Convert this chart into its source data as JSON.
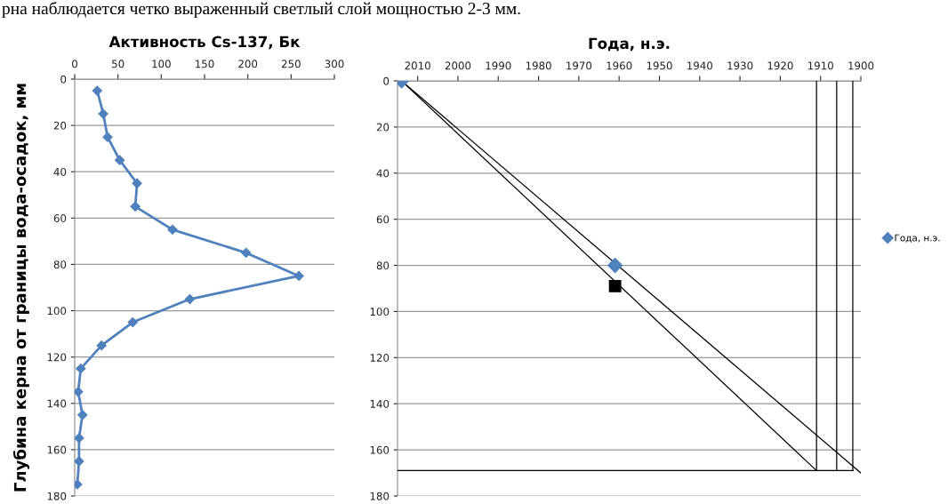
{
  "chart_data": [
    {
      "type": "line",
      "title": "Активность Cs-137, Бк",
      "ylabel": "Глубина керна от границы вода-осадок, мм",
      "annotations": [
        "рна наблюдается четко выраженный светлый слой мощностью 2-3 мм."
      ],
      "xlim": [
        0,
        300
      ],
      "xticks": [
        0,
        50,
        100,
        150,
        200,
        250,
        300
      ],
      "ylim": [
        180,
        0
      ],
      "yticks": [
        0,
        20,
        40,
        60,
        80,
        100,
        120,
        140,
        160,
        180
      ],
      "grid": "y",
      "marker": "diamond",
      "series": [
        {
          "color": "#4f81bd",
          "x": [
            26,
            33,
            38,
            52,
            72,
            70,
            113,
            198,
            259,
            133,
            67,
            31,
            7,
            4,
            9,
            5,
            5,
            3
          ],
          "values": [
            5,
            15,
            25,
            35,
            45,
            55,
            65,
            75,
            85,
            95,
            105,
            115,
            125,
            135,
            145,
            155,
            165,
            175
          ]
        }
      ]
    },
    {
      "type": "scatter",
      "title": "Года, н.э.",
      "xlim": [
        2015,
        1900
      ],
      "xticks": [
        2010,
        2000,
        1990,
        1980,
        1970,
        1960,
        1950,
        1940,
        1930,
        1920,
        1910,
        1900
      ],
      "ylim": [
        180,
        0
      ],
      "yticks": [
        0,
        20,
        40,
        60,
        80,
        100,
        120,
        140,
        160,
        180
      ],
      "grid": "y",
      "legend": "right",
      "series": [
        {
          "type": "line",
          "color": "#000000",
          "marker": "none",
          "x": [
            2014,
            1900
          ],
          "values": [
            0,
            170
          ]
        },
        {
          "type": "line",
          "color": "#000000",
          "marker": "none",
          "x": [
            2014,
            1911
          ],
          "values": [
            0,
            169
          ]
        },
        {
          "type": "line",
          "color": "#000000",
          "marker": "none",
          "x": [
            1911,
            1911
          ],
          "values": [
            0,
            169
          ]
        },
        {
          "type": "line",
          "color": "#000000",
          "marker": "none",
          "x": [
            1906,
            1906
          ],
          "values": [
            0,
            169
          ]
        },
        {
          "type": "line",
          "color": "#000000",
          "marker": "none",
          "x": [
            1902,
            1902
          ],
          "values": [
            0,
            169
          ]
        },
        {
          "type": "line",
          "color": "#000000",
          "marker": "none",
          "x": [
            2015,
            1902
          ],
          "values": [
            169,
            169
          ]
        },
        {
          "name": "Года, н.э.",
          "color": "#4f81bd",
          "marker": "diamond",
          "x": [
            2014,
            1961
          ],
          "values": [
            0,
            80
          ]
        },
        {
          "color": "#000000",
          "marker": "square",
          "x": [
            1961
          ],
          "values": [
            89
          ]
        }
      ]
    }
  ]
}
